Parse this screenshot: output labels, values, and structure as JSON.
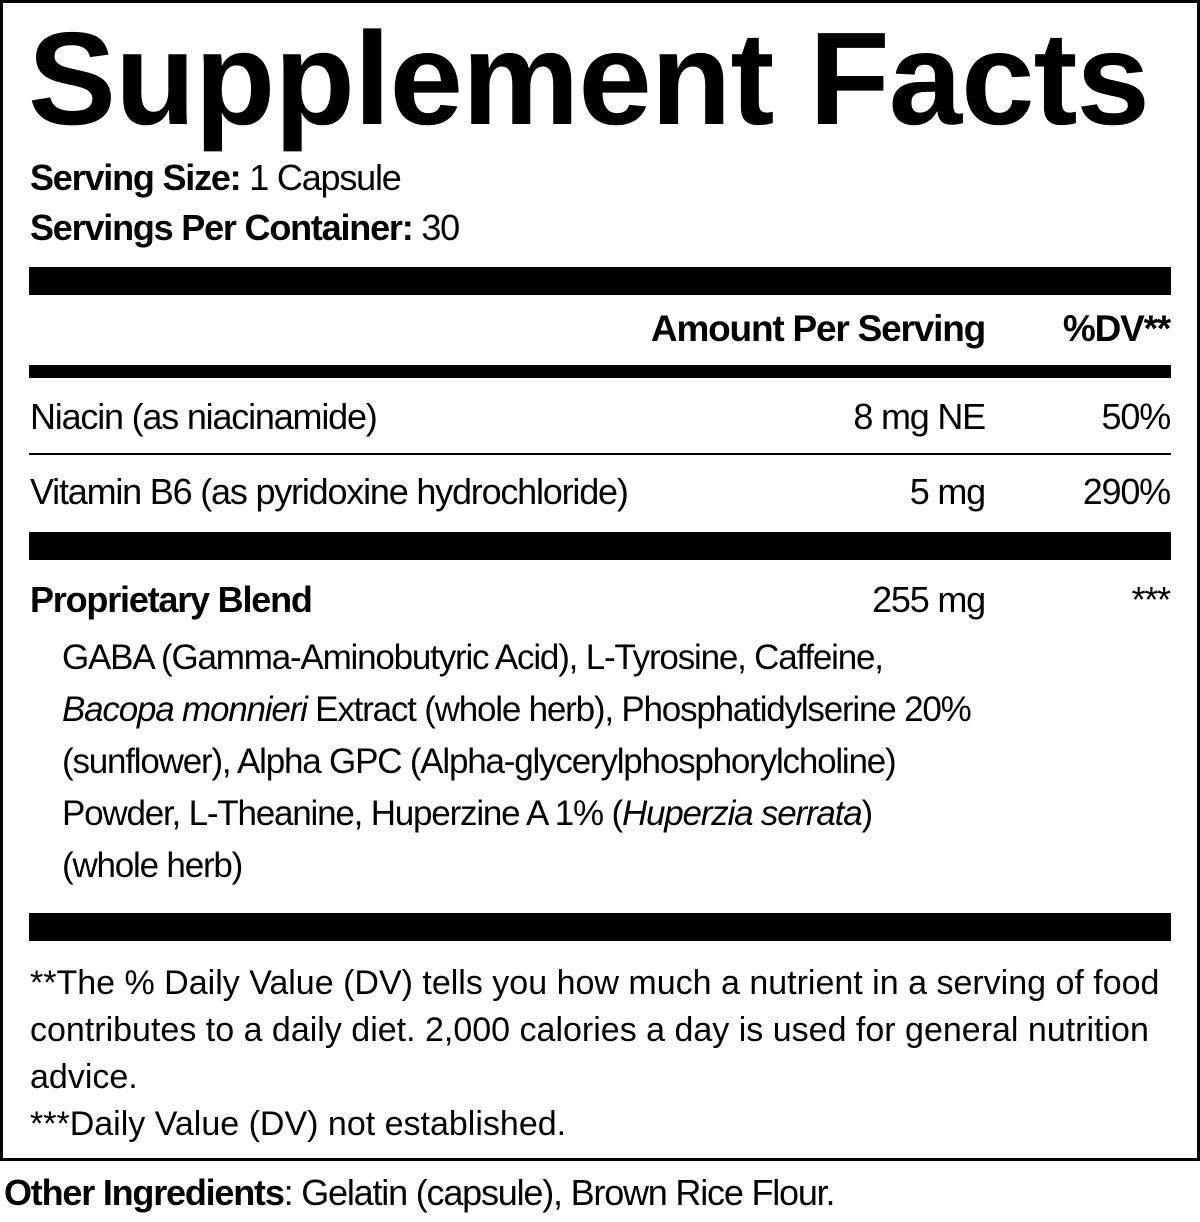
{
  "title": "Supplement Facts",
  "serving_size": {
    "label": "Serving Size:",
    "value": " 1 Capsule"
  },
  "servings_per_container": {
    "label": "Servings Per Container:",
    "value": " 30"
  },
  "header": {
    "amount": "Amount Per Serving",
    "dv": "%DV**"
  },
  "nutrients": [
    {
      "name": "Niacin (as niacinamide)",
      "amount": "8 mg NE",
      "dv": "50%"
    },
    {
      "name": "Vitamin B6 (as pyridoxine hydrochloride)",
      "amount": "5 mg",
      "dv": "290%"
    }
  ],
  "blend": {
    "name": "Proprietary Blend",
    "amount": "255 mg",
    "dv": "***",
    "lines": [
      [
        "GABA (Gamma-Aminobutyric Acid), L-Tyrosine, Caffeine,"
      ],
      [
        "Bacopa monnieri",
        " Extract (whole herb), Phosphatidylserine 20%"
      ],
      [
        "(sunflower), Alpha GPC (Alpha-glycerylphosphorylcholine)"
      ],
      [
        "Powder, L-Theanine, Huperzine A 1% (",
        "Huperzia serrata",
        ")"
      ],
      [
        "(whole herb)"
      ]
    ]
  },
  "footnotes": [
    "**The % Daily Value (DV) tells you how much a nutrient in a serving of food contributes to a daily diet. 2,000 calories a day is used for general nutrition advice.",
    "***Daily Value (DV) not established."
  ],
  "other_ingredients": {
    "label": "Other Ingredients",
    "value": ": Gelatin (capsule), Brown Rice Flour."
  }
}
